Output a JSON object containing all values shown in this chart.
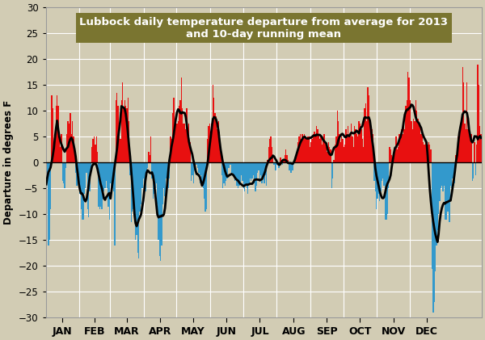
{
  "title_line1": "Lubbock daily temperature departure from average for 2013",
  "title_line2": "and 10-day running mean",
  "title_bg_color": "#7a7530",
  "title_text_color": "#ffffff",
  "ylabel": "Departure in degrees F",
  "bg_color": "#d2ccb4",
  "grid_color": "#ffffff",
  "bar_color_pos": "#e81010",
  "bar_color_neg": "#3399cc",
  "line_color": "#000000",
  "ylim": [
    -30,
    30
  ],
  "month_labels": [
    "JAN",
    "FEB",
    "MAR",
    "APR",
    "MAY",
    "JUN",
    "JUL",
    "AUG",
    "SEP",
    "OCT",
    "NOV",
    "DEC"
  ],
  "month_days": [
    31,
    28,
    31,
    30,
    31,
    30,
    31,
    31,
    30,
    31,
    30,
    31
  ],
  "daily_departures": [
    1.0,
    -3.0,
    -16.0,
    -15.0,
    -9.0,
    13.0,
    10.5,
    4.0,
    5.0,
    11.0,
    13.0,
    11.0,
    5.0,
    3.0,
    5.5,
    -3.5,
    -4.0,
    -5.0,
    -1.0,
    5.5,
    8.0,
    7.5,
    9.5,
    5.5,
    8.0,
    5.0,
    2.0,
    -2.0,
    -4.5,
    -3.0,
    -2.5,
    -6.0,
    -9.0,
    -11.0,
    -11.0,
    -6.0,
    -5.0,
    -2.0,
    -9.0,
    -10.5,
    -5.5,
    -1.5,
    3.0,
    4.5,
    5.0,
    3.5,
    5.0,
    2.0,
    -8.5,
    -9.0,
    -8.5,
    -9.0,
    -7.0,
    -5.5,
    -5.0,
    -3.5,
    -5.0,
    -8.5,
    -11.0,
    -4.0,
    -6.0,
    -5.0,
    -5.5,
    -16.0,
    12.0,
    13.5,
    11.0,
    7.0,
    4.5,
    12.0,
    15.5,
    10.5,
    12.0,
    11.0,
    10.5,
    12.5,
    8.0,
    -2.5,
    -11.5,
    -9.5,
    -9.0,
    -10.5,
    -15.0,
    -14.0,
    -17.5,
    -18.5,
    -9.5,
    -8.0,
    -5.0,
    -3.0,
    -4.5,
    -5.5,
    -1.5,
    -1.0,
    2.0,
    1.5,
    5.0,
    -3.0,
    -7.0,
    -6.0,
    -5.0,
    -4.0,
    -8.0,
    -15.0,
    -18.0,
    -19.0,
    -16.0,
    -8.0,
    -5.0,
    -6.5,
    -3.0,
    -4.5,
    -5.0,
    -3.0,
    5.0,
    4.5,
    9.5,
    12.5,
    7.5,
    8.0,
    7.5,
    8.0,
    11.0,
    12.0,
    16.5,
    10.5,
    7.5,
    7.5,
    6.5,
    10.5,
    6.5,
    7.5,
    4.0,
    -3.5,
    -2.5,
    -4.0,
    -1.5,
    -0.5,
    -0.5,
    -1.0,
    -2.0,
    -4.0,
    -2.5,
    -4.0,
    -5.0,
    -7.0,
    -9.5,
    -9.0,
    4.5,
    7.0,
    7.5,
    5.5,
    7.5,
    15.0,
    12.5,
    9.5,
    9.0,
    6.5,
    8.0,
    6.0,
    3.0,
    -2.5,
    -5.0,
    -4.0,
    -4.5,
    -3.5,
    -3.0,
    -1.0,
    -1.0,
    -0.5,
    -2.0,
    -2.0,
    -2.5,
    -3.5,
    -3.0,
    -4.5,
    -5.0,
    -4.5,
    -4.0,
    -2.5,
    -3.5,
    -5.0,
    -5.5,
    -4.5,
    -5.0,
    -6.0,
    -4.0,
    -3.0,
    -3.5,
    -3.0,
    -2.5,
    -4.0,
    -5.5,
    -4.5,
    -2.0,
    -1.5,
    -3.5,
    -2.5,
    -4.0,
    -3.0,
    -4.0,
    -2.5,
    -4.5,
    0.5,
    3.0,
    4.5,
    5.0,
    3.0,
    1.5,
    -0.5,
    -1.5,
    -1.5,
    -0.5,
    -1.0,
    -1.0,
    1.0,
    0.5,
    -0.5,
    0.5,
    1.5,
    2.5,
    1.5,
    0.5,
    -1.5,
    -2.0,
    -2.0,
    -1.5,
    -0.5,
    0.5,
    1.0,
    1.5,
    4.0,
    5.0,
    5.5,
    4.5,
    5.5,
    4.5,
    5.5,
    5.0,
    4.5,
    5.0,
    5.0,
    3.0,
    4.0,
    4.5,
    5.5,
    6.0,
    5.5,
    7.0,
    6.5,
    5.5,
    4.5,
    5.0,
    3.5,
    4.5,
    5.5,
    4.0,
    3.0,
    2.0,
    4.0,
    3.0,
    2.5,
    -5.0,
    -3.0,
    0.5,
    3.5,
    5.0,
    10.0,
    8.0,
    5.5,
    4.0,
    5.0,
    4.5,
    3.0,
    3.5,
    6.5,
    5.5,
    7.0,
    5.0,
    5.0,
    7.5,
    5.0,
    3.0,
    7.0,
    6.5,
    5.5,
    5.0,
    8.0,
    7.5,
    6.5,
    4.5,
    3.0,
    10.5,
    11.5,
    8.0,
    14.5,
    13.0,
    8.5,
    6.5,
    6.5,
    5.5,
    -3.5,
    -5.5,
    -9.0,
    -7.0,
    -6.0,
    -7.5,
    -5.5,
    -3.5,
    -3.0,
    -4.5,
    -11.0,
    -11.0,
    -10.0,
    -5.0,
    3.0,
    2.5,
    1.5,
    0.5,
    2.0,
    3.0,
    5.0,
    2.5,
    3.0,
    5.5,
    4.5,
    6.5,
    5.5,
    7.0,
    6.5,
    11.0,
    12.0,
    17.5,
    16.5,
    12.0,
    8.0,
    6.5,
    8.5,
    8.0,
    12.0,
    10.0,
    8.5,
    7.5,
    7.0,
    5.5,
    5.0,
    4.0,
    3.5,
    4.0,
    3.0,
    3.5,
    4.0,
    3.5,
    2.5,
    -20.5,
    -29.0,
    -27.0,
    -21.0,
    -16.0,
    -13.0,
    -10.0,
    -7.5,
    -5.0,
    -4.5,
    -5.5,
    -4.5,
    -11.0,
    -11.0,
    -9.5,
    -9.5,
    -11.5,
    -4.5,
    -5.0,
    -3.0,
    -4.5,
    -4.0,
    1.5,
    3.0,
    5.0,
    6.5,
    7.5,
    7.5,
    18.5,
    15.5,
    7.5,
    6.5,
    15.5,
    6.5,
    7.5,
    5.5,
    5.5,
    -3.5,
    -3.0,
    4.0,
    -2.5,
    3.5,
    19.0,
    15.0,
    7.0,
    5.5
  ]
}
